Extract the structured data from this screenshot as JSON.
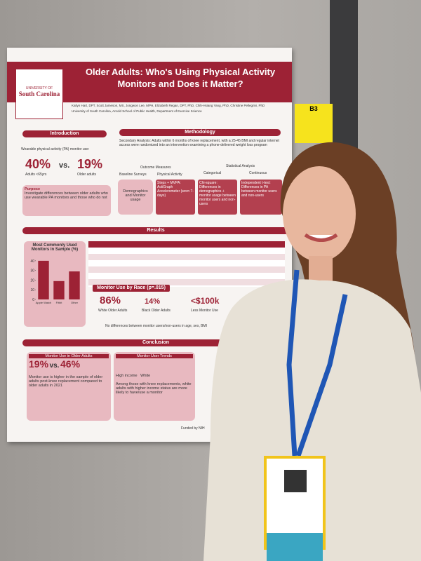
{
  "poster": {
    "title": "Older Adults: Who's Using Physical Activity Monitors and Does it Matter?",
    "logo": {
      "line1": "UNIVERSITY OF",
      "line2": "South Carolina"
    },
    "authors": "Kailyn Hart, DPT, Scott Jameson, MS, Jongwon Lee, MPH, Elizabeth Regan, DPT, PhD, Chih-Hsiang Yang, PhD, Christine Pellegrini, PhD",
    "affiliation": "University of South Carolina, Arnold School of Public Health, Department of Exercise Science",
    "intro": {
      "header": "Introduction",
      "text": "Wearable physical activity (PA) monitor use:",
      "stat1": "40%",
      "vs": "vs.",
      "stat2": "19%",
      "stat1_label": "Adults <65yrs",
      "stat2_label": "Older adults",
      "purpose_header": "Purpose",
      "purpose": "Investigate differences between older adults who use wearable PA monitors and those who do not"
    },
    "methods": {
      "header": "Methodology",
      "text": "Secondary Analysis: Adults within 6 months of knee replacement, with a 25-45 BMI and regular internet access were randomized into an intervention examining a phone-delivered weight loss program",
      "outcome_header": "Outcome Measures",
      "stats_header": "Statistical Analysis",
      "baseline": "Baseline Surveys",
      "pa": "Physical Activity",
      "categorical": "Categorical",
      "continuous": "Continuous",
      "box1": "Demographics and Monitor usage",
      "box2": "Steps + MVPA: ActiGraph Accelerometer (worn 7-days)",
      "box3": "Chi-square: Differences in demographics + monitor usage between monitor users and non-users",
      "box4": "Independent t-test: Differences in PA between monitor users and non-users"
    },
    "results": {
      "header": "Results",
      "monitors_chart": {
        "type": "bar",
        "title": "Most Commonly Used Monitors in Sample (%)",
        "categories": [
          "Apple Watch",
          "Fitbit",
          "Other"
        ],
        "values": [
          40,
          19,
          29
        ],
        "color": "#9d2235",
        "ylim": [
          0,
          45
        ],
        "yticks": [
          0,
          10,
          20,
          30,
          40
        ]
      },
      "race_header": "Monitor Use by Race (p=.015)",
      "white_pct": "86%",
      "black_pct": "14%",
      "white_label": "White Older Adults",
      "black_label": "Black Older Adults",
      "income": "<$100k",
      "income_label": "Less Monitor Use",
      "note": "No differences between monitor users/non-users in age, sex, BMI"
    },
    "conclusion": {
      "header": "Conclusion",
      "box1_header": "Monitor Use in Older Adults",
      "stat1": "19%",
      "vs": "vs.",
      "stat2": "46%",
      "text1": "Monitor use is higher in the sample of older adults post-knee replacement compared to older adults in 2021",
      "box2_header": "Monitor User Trends",
      "high_income": "High income",
      "white": "White",
      "text2": "Among those with knee replacements, white adults with higher income status are more likely to have/use a monitor"
    },
    "footer": "Funded by NIH"
  },
  "tag": "B3"
}
